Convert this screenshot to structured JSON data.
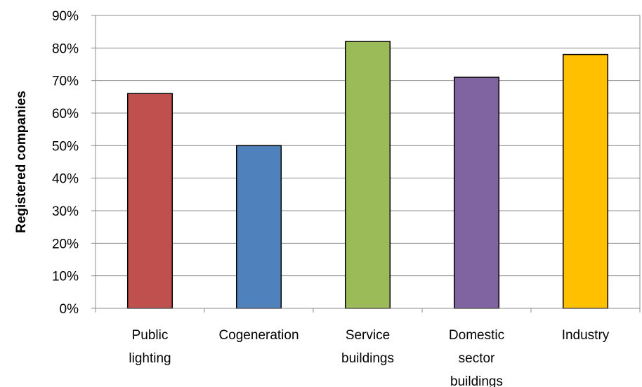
{
  "chart_data": {
    "type": "bar",
    "title": "",
    "xlabel": "",
    "ylabel": "Registered companies",
    "ylim": [
      0,
      90
    ],
    "y_tick_step": 10,
    "y_tick_format": "percent",
    "grid": true,
    "legend": "none",
    "categories": [
      [
        "Public",
        "lighting"
      ],
      [
        "Cogeneration"
      ],
      [
        "Service",
        "buildings"
      ],
      [
        "Domestic",
        "sector",
        "buildings"
      ],
      [
        "Industry"
      ]
    ],
    "values": [
      66,
      50,
      82,
      71,
      78
    ],
    "colors": [
      "#C0504D",
      "#4F81BD",
      "#9BBB59",
      "#8064A2",
      "#FFC000"
    ]
  }
}
